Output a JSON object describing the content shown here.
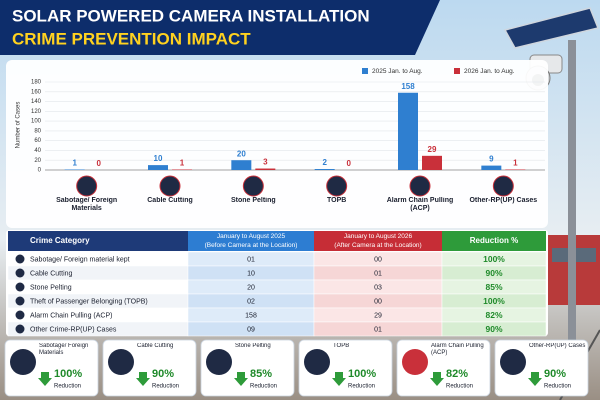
{
  "header": {
    "title": "SOLAR POWERED CAMERA INSTALLATION",
    "subtitle": "CRIME PREVENTION IMPACT"
  },
  "chart_data": {
    "type": "bar",
    "y_label": "Number of Cases",
    "categories": [
      "Sabotage/ Foreign Materials",
      "Cable Cutting",
      "Stone Pelting",
      "TOPB",
      "Alarm Chain Pulling (ACP)",
      "Other-RP(UP) Cases"
    ],
    "series": [
      {
        "name": "2025 Jan. to Aug.",
        "color": "#2f7fd0",
        "values": [
          1,
          10,
          20,
          2,
          158,
          9
        ]
      },
      {
        "name": "2026 Jan. to Aug.",
        "color": "#c9303a",
        "values": [
          0,
          1,
          3,
          0,
          29,
          1
        ]
      }
    ],
    "ylim": [
      0,
      180
    ],
    "yticks": [
      0,
      20,
      40,
      60,
      80,
      100,
      120,
      140,
      160,
      180
    ],
    "grid": true
  },
  "table": {
    "header": [
      "Crime Category",
      "January to August 2025",
      "(Before Camera at the Location)",
      "January to August 2026",
      "(After Camera at the Location)",
      "Reduction %"
    ],
    "rows": [
      [
        "Sabotage/ Foreign material kept",
        "01",
        "00",
        "100%"
      ],
      [
        "Cable Cutting",
        "10",
        "01",
        "90%"
      ],
      [
        "Stone Pelting",
        "20",
        "03",
        "85%"
      ],
      [
        "Theft of Passenger Belonging (TOPB)",
        "02",
        "00",
        "100%"
      ],
      [
        "Alarm Chain Pulling (ACP)",
        "158",
        "29",
        "82%"
      ],
      [
        "Other Crime-RP(UP) Cases",
        "09",
        "01",
        "90%"
      ]
    ]
  },
  "cards": [
    {
      "label": "Sabotage/ Foreign Materials",
      "value": "100%",
      "note": "Reduction"
    },
    {
      "label": "Cable Cutting",
      "value": "90%",
      "note": "Reduction"
    },
    {
      "label": "Stone Pelting",
      "value": "85%",
      "note": "Reduction"
    },
    {
      "label": "TOPB",
      "value": "100%",
      "note": "Reduction"
    },
    {
      "label": "Alarm Chain Pulling (ACP)",
      "value": "82%",
      "note": "Reduction"
    },
    {
      "label": "Other-RP(UP) Cases",
      "value": "90%",
      "note": "Reduction"
    }
  ]
}
